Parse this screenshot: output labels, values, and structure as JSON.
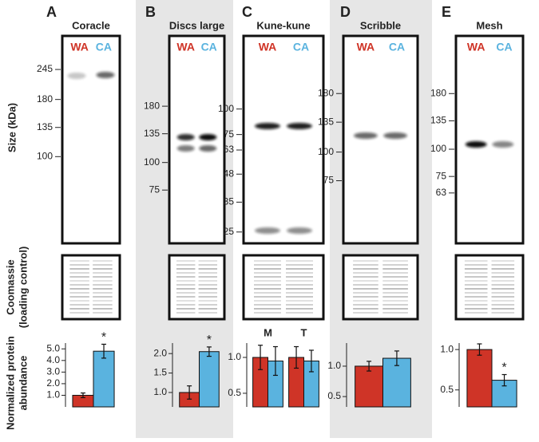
{
  "figure": {
    "size_label": "Size (kDa)",
    "coomassie_label": [
      "Coomassie",
      "(loading control)"
    ],
    "abundance_label": [
      "Normalized protein",
      "abundance"
    ]
  },
  "panels": [
    {
      "letter": "A",
      "title": "Coracle",
      "size_markers": [
        245,
        180,
        135,
        100
      ],
      "size_lim": [
        41,
        346
      ],
      "size_scale": "log"
    },
    {
      "letter": "B",
      "title": "Discs large",
      "size_markers": [
        180,
        135,
        100,
        75
      ],
      "size_lim": [
        43,
        375
      ],
      "size_scale": "log"
    },
    {
      "letter": "C",
      "title": "Kune-kune",
      "size_markers": [
        100,
        75,
        63,
        48,
        35,
        25
      ],
      "size_lim": [
        22,
        228
      ],
      "size_scale": "log"
    },
    {
      "letter": "D",
      "title": "Scribble",
      "size_markers": [
        180,
        135,
        100,
        75
      ],
      "size_lim": [
        40,
        321
      ],
      "size_scale": "log"
    },
    {
      "letter": "E",
      "title": "Mesh",
      "size_markers": [
        180,
        135,
        100,
        75,
        63
      ],
      "size_lim": [
        37,
        331
      ],
      "size_scale": "log"
    }
  ],
  "chart_data": [
    {
      "type": "bar",
      "categories": [
        null
      ],
      "series": [
        {
          "name": "WA",
          "color": "#cf3427",
          "values": [
            1.0
          ],
          "errors": [
            0.2
          ]
        },
        {
          "name": "CA",
          "color": "#5ab3df",
          "values": [
            4.8
          ],
          "errors": [
            0.6
          ],
          "annotation": "*"
        }
      ],
      "ylim": [
        0,
        5.5
      ],
      "yticks": [
        {
          "value": 1,
          "label": "1.0"
        },
        {
          "value": 2,
          "label": "2.0"
        },
        {
          "value": 3,
          "label": "3.0"
        },
        {
          "value": 4,
          "label": "4.0"
        },
        {
          "value": 5,
          "label": "5.0"
        }
      ]
    },
    {
      "type": "bar",
      "categories": [
        null
      ],
      "series": [
        {
          "name": "WA",
          "color": "#cf3427",
          "values": [
            1.0
          ],
          "errors": [
            0.17
          ]
        },
        {
          "name": "CA",
          "color": "#5ab3df",
          "values": [
            2.05
          ],
          "errors": [
            0.12
          ],
          "annotation": "*"
        }
      ],
      "ylim": [
        0.63,
        2.27
      ],
      "yticks": [
        {
          "value": 1,
          "label": "1.0"
        },
        1.5,
        {
          "value": 2,
          "label": "2.0"
        }
      ]
    },
    {
      "type": "bar",
      "categories": [
        "M",
        "T"
      ],
      "series": [
        {
          "name": "WA",
          "color": "#cf3427",
          "values": [
            1.0,
            1.0
          ],
          "errors": [
            0.17,
            0.15
          ]
        },
        {
          "name": "CA",
          "color": "#5ab3df",
          "values": [
            0.95,
            0.95
          ],
          "errors": [
            0.2,
            0.15
          ]
        }
      ],
      "ylim": [
        0.31,
        1.2
      ],
      "yticks": [
        0.5,
        {
          "value": 1,
          "label": "1.0"
        }
      ]
    },
    {
      "type": "bar",
      "categories": [
        null
      ],
      "series": [
        {
          "name": "WA",
          "color": "#cf3427",
          "values": [
            1.0
          ],
          "errors": [
            0.08
          ]
        },
        {
          "name": "CA",
          "color": "#5ab3df",
          "values": [
            1.13
          ],
          "errors": [
            0.12
          ]
        }
      ],
      "ylim": [
        0.33,
        1.38
      ],
      "yticks": [
        0.5,
        {
          "value": 1,
          "label": "1.0"
        }
      ]
    },
    {
      "type": "bar",
      "categories": [
        null
      ],
      "series": [
        {
          "name": "WA",
          "color": "#cf3427",
          "values": [
            1.0
          ],
          "errors": [
            0.07
          ]
        },
        {
          "name": "CA",
          "color": "#5ab3df",
          "values": [
            0.62
          ],
          "errors": [
            0.07
          ],
          "annotation": "*"
        }
      ],
      "ylim": [
        0.29,
        1.08
      ],
      "yticks": [
        0.5,
        {
          "value": 1,
          "label": "1.0"
        }
      ]
    }
  ]
}
